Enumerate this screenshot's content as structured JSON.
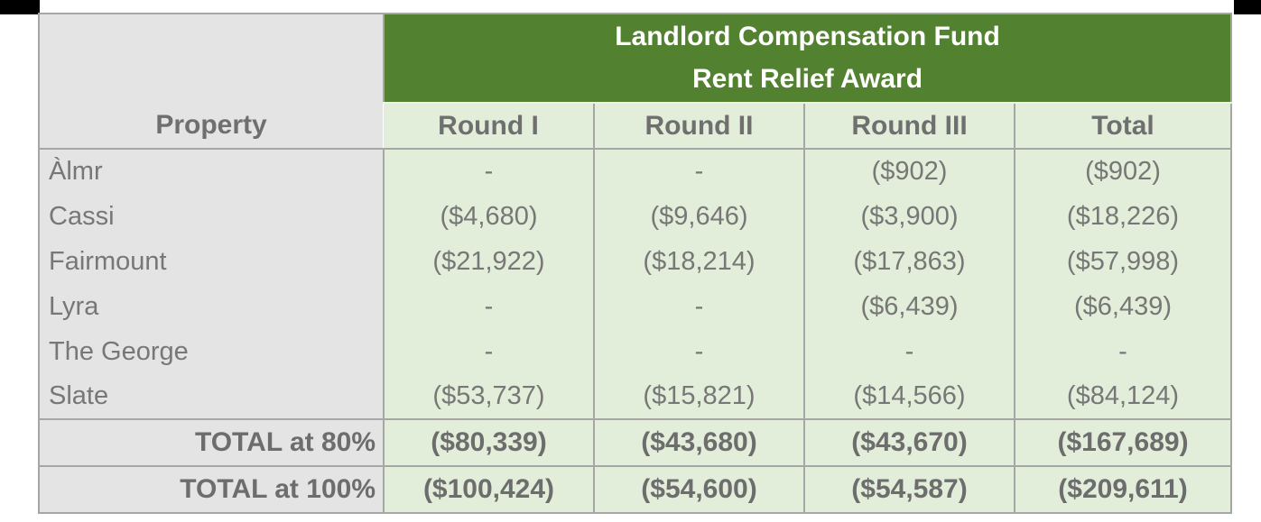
{
  "decorations": {
    "top_left_bar_color": "#000000",
    "top_right_bar_color": "#000000"
  },
  "table": {
    "title_line_1": "Landlord Compensation Fund",
    "title_line_2": "Rent Relief Award",
    "property_header": "Property",
    "columns": [
      "Round I",
      "Round II",
      "Round III",
      "Total"
    ],
    "rows": [
      {
        "property": "Àlmr",
        "values": [
          "-",
          "-",
          "($902)",
          "($902)"
        ]
      },
      {
        "property": "Cassi",
        "values": [
          "($4,680)",
          "($9,646)",
          "($3,900)",
          "($18,226)"
        ]
      },
      {
        "property": "Fairmount",
        "values": [
          "($21,922)",
          "($18,214)",
          "($17,863)",
          "($57,998)"
        ]
      },
      {
        "property": "Lyra",
        "values": [
          "-",
          "-",
          "($6,439)",
          "($6,439)"
        ]
      },
      {
        "property": "The George",
        "values": [
          "-",
          "-",
          "-",
          "-"
        ]
      },
      {
        "property": "Slate",
        "values": [
          "($53,737)",
          "($15,821)",
          "($14,566)",
          "($84,124)"
        ]
      }
    ],
    "totals": [
      {
        "label": "TOTAL at 80%",
        "values": [
          "($80,339)",
          "($43,680)",
          "($43,670)",
          "($167,689)"
        ]
      },
      {
        "label": "TOTAL at 100%",
        "values": [
          "($100,424)",
          "($54,600)",
          "($54,587)",
          "($209,611)"
        ]
      }
    ],
    "colors": {
      "banner_green": "#52812f",
      "cell_green": "#e2eed9",
      "property_gray": "#e4e4e4",
      "border_gray": "#a6a6a6",
      "banner_separator": "#eef3e9",
      "text_gray": "#777777",
      "title_text": "#ffffff"
    }
  }
}
